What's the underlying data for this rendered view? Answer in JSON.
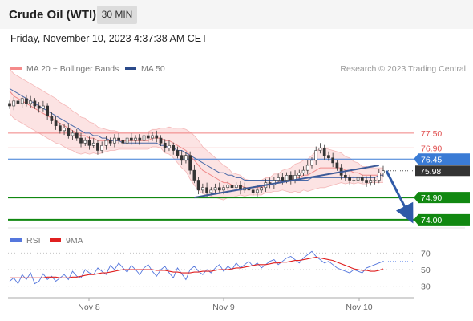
{
  "header": {
    "title": "Crude Oil (WTI)",
    "timeframe": "30 MIN"
  },
  "datetime": "Friday, November 10, 2023 4:37:38 AM CET",
  "credit": "Research © 2023 Trading Central",
  "legend": {
    "main": [
      {
        "label": "MA 20 + Bollinger Bands",
        "color": "#f58a8a"
      },
      {
        "label": "MA 50",
        "color": "#2b4a8a"
      }
    ],
    "rsi": [
      {
        "label": "RSI",
        "color": "#5577dd"
      },
      {
        "label": "9MA",
        "color": "#e02020"
      }
    ]
  },
  "chart_data": [
    {
      "type": "candlestick",
      "title": "Crude Oil (WTI)",
      "timeframe": "30 MIN",
      "ylim": [
        73.8,
        79.8
      ],
      "x_tick_labels": [
        "Nov 8",
        "Nov 9",
        "Nov 10"
      ],
      "key_levels": [
        {
          "label": "77.50",
          "value": 77.5,
          "style": "resistance",
          "color": "#f08080"
        },
        {
          "label": "76.90",
          "value": 76.9,
          "style": "resistance",
          "color": "#f08080"
        },
        {
          "label": "76.45",
          "value": 76.45,
          "style": "pivot",
          "color": "#3a7bd5"
        },
        {
          "label": "75.98",
          "value": 75.98,
          "style": "last-price",
          "color": "#333333"
        },
        {
          "label": "74.90",
          "value": 74.9,
          "style": "support",
          "color": "#118811"
        },
        {
          "label": "74.00",
          "value": 74.0,
          "style": "support",
          "color": "#118811"
        }
      ],
      "trendline": {
        "from": 74.9,
        "to": 76.2,
        "color": "#3d5a98"
      },
      "projection": {
        "from": 75.98,
        "to": 74.0,
        "color": "#2f5aa8"
      },
      "close_series": [
        78.6,
        78.8,
        78.7,
        78.9,
        78.7,
        78.8,
        78.6,
        78.5,
        78.6,
        78.2,
        78.0,
        77.8,
        77.6,
        77.7,
        77.4,
        77.5,
        77.3,
        77.1,
        77.2,
        77.0,
        77.1,
        76.8,
        77.0,
        77.2,
        77.1,
        77.3,
        77.2,
        77.1,
        77.3,
        77.2,
        77.3,
        77.2,
        77.4,
        77.3,
        77.4,
        77.3,
        77.1,
        76.9,
        77.0,
        76.8,
        76.6,
        76.4,
        76.6,
        76.0,
        75.6,
        75.2,
        75.3,
        75.1,
        75.2,
        75.3,
        75.2,
        75.3,
        75.4,
        75.3,
        75.4,
        75.2,
        75.3,
        75.2,
        75.1,
        75.2,
        75.3,
        75.5,
        75.4,
        75.6,
        75.7,
        75.6,
        75.8,
        75.6,
        75.8,
        75.9,
        76.0,
        76.2,
        76.4,
        76.8,
        76.9,
        76.6,
        76.5,
        76.3,
        76.1,
        75.8,
        75.7,
        75.6,
        75.6,
        75.7,
        75.6,
        75.5,
        75.6,
        75.6,
        75.9,
        75.98
      ],
      "ma20": [
        79.2,
        79.0,
        78.9,
        78.8,
        78.7,
        78.6,
        78.5,
        78.4,
        78.3,
        78.2,
        78.1,
        78.0,
        77.9,
        77.8,
        77.7,
        77.6,
        77.5,
        77.4,
        77.4,
        77.3,
        77.3,
        77.2,
        77.2,
        77.2,
        77.2,
        77.2,
        77.2,
        77.2,
        77.2,
        77.2,
        77.2,
        77.2,
        77.2,
        77.2,
        77.3,
        77.3,
        77.3,
        77.2,
        77.2,
        77.1,
        77.0,
        76.9,
        76.8,
        76.6,
        76.4,
        76.2,
        76.0,
        75.9,
        75.8,
        75.7,
        75.6,
        75.5,
        75.5,
        75.4,
        75.4,
        75.4,
        75.3,
        75.3,
        75.3,
        75.3,
        75.3,
        75.4,
        75.4,
        75.5,
        75.5,
        75.6,
        75.6,
        75.6,
        75.7,
        75.7,
        75.8,
        75.8,
        75.9,
        76.0,
        76.1,
        76.1,
        76.1,
        76.1,
        76.1,
        76.1,
        76.0,
        76.0,
        75.9,
        75.9,
        75.8,
        75.8,
        75.8,
        75.8,
        75.8,
        75.8
      ],
      "ma50": [
        79.3,
        79.2,
        79.1,
        79.0,
        78.9,
        78.8,
        78.7,
        78.6,
        78.5,
        78.4,
        78.3,
        78.2,
        78.1,
        78.0,
        77.9,
        77.8,
        77.7,
        77.6,
        77.5,
        77.5,
        77.4,
        77.4,
        77.3,
        77.3,
        77.2,
        77.2,
        77.2,
        77.1,
        77.1,
        77.1,
        77.1,
        77.1,
        77.1,
        77.1,
        77.1,
        77.1,
        77.0,
        77.0,
        76.9,
        76.9,
        76.8,
        76.8,
        76.7,
        76.6,
        76.5,
        76.4,
        76.3,
        76.2,
        76.1,
        76.0,
        75.9,
        75.9,
        75.8,
        75.8,
        75.7,
        75.7,
        75.6,
        75.6,
        75.6,
        75.6,
        75.6,
        75.6,
        75.6,
        75.6,
        75.6,
        75.6,
        75.6,
        75.6,
        75.6,
        75.6,
        75.6,
        75.6,
        75.7,
        75.7,
        75.7,
        75.7,
        75.7,
        75.7,
        75.7,
        75.7,
        75.7,
        75.7,
        75.7,
        75.7,
        75.7,
        75.7,
        75.7,
        75.7,
        75.8,
        75.8
      ],
      "bollinger_width": [
        0.9,
        0.9,
        0.9,
        0.9,
        0.9,
        0.9,
        0.9,
        0.9,
        0.9,
        0.9,
        0.9,
        0.9,
        0.85,
        0.85,
        0.85,
        0.8,
        0.8,
        0.75,
        0.7,
        0.65,
        0.6,
        0.55,
        0.5,
        0.45,
        0.4,
        0.4,
        0.35,
        0.35,
        0.35,
        0.35,
        0.35,
        0.35,
        0.35,
        0.35,
        0.35,
        0.35,
        0.4,
        0.5,
        0.55,
        0.6,
        0.7,
        0.8,
        0.85,
        0.95,
        1.0,
        1.0,
        0.95,
        0.9,
        0.85,
        0.8,
        0.75,
        0.7,
        0.6,
        0.5,
        0.45,
        0.4,
        0.35,
        0.3,
        0.3,
        0.3,
        0.3,
        0.3,
        0.3,
        0.35,
        0.35,
        0.4,
        0.45,
        0.5,
        0.55,
        0.6,
        0.6,
        0.65,
        0.7,
        0.75,
        0.8,
        0.8,
        0.75,
        0.7,
        0.65,
        0.6,
        0.55,
        0.5,
        0.45,
        0.4,
        0.35,
        0.35,
        0.3,
        0.3,
        0.3,
        0.3
      ]
    },
    {
      "type": "line",
      "title": "RSI",
      "ylim": [
        20,
        80
      ],
      "y_ticks": [
        70,
        50,
        30
      ],
      "series": [
        {
          "name": "RSI",
          "color": "#5577dd",
          "values": [
            36,
            40,
            33,
            44,
            38,
            46,
            33,
            36,
            45,
            38,
            42,
            36,
            40,
            44,
            38,
            48,
            42,
            40,
            50,
            46,
            44,
            52,
            48,
            44,
            55,
            50,
            58,
            52,
            47,
            55,
            50,
            44,
            52,
            56,
            48,
            42,
            50,
            54,
            46,
            40,
            52,
            45,
            38,
            50,
            54,
            48,
            44,
            50,
            46,
            52,
            56,
            48,
            54,
            50,
            58,
            52,
            56,
            60,
            54,
            58,
            52,
            56,
            60,
            62,
            56,
            60,
            64,
            66,
            62,
            58,
            64,
            68,
            72,
            66,
            62,
            58,
            60,
            56,
            52,
            50,
            48,
            46,
            50,
            48,
            46,
            52,
            54,
            56,
            58,
            60
          ]
        },
        {
          "name": "9MA",
          "color": "#e02020",
          "values": [
            40,
            40,
            40,
            40,
            40,
            40,
            40,
            40,
            40,
            41,
            41,
            41,
            40,
            40,
            40,
            41,
            41,
            42,
            43,
            44,
            44,
            45,
            46,
            46,
            47,
            48,
            49,
            50,
            50,
            50,
            50,
            50,
            50,
            50,
            50,
            49,
            49,
            49,
            48,
            47,
            47,
            46,
            46,
            46,
            47,
            47,
            48,
            48,
            48,
            49,
            50,
            50,
            50,
            51,
            52,
            52,
            53,
            54,
            55,
            56,
            56,
            56,
            57,
            58,
            58,
            59,
            59,
            60,
            61,
            61,
            62,
            63,
            64,
            65,
            64,
            63,
            62,
            61,
            59,
            57,
            55,
            53,
            51,
            50,
            49,
            49,
            48,
            48,
            49,
            51
          ]
        }
      ]
    }
  ]
}
